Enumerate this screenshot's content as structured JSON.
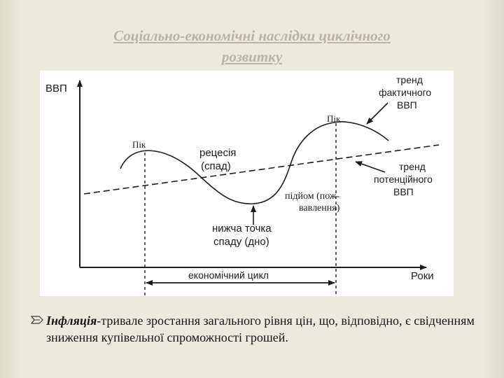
{
  "slide": {
    "title_line1": "Соціально-економічні наслідки циклічного",
    "title_line2": "розвитку"
  },
  "diagram": {
    "y_axis_label": "ВВП",
    "x_axis_label": "Роки",
    "peak_left": "Пік",
    "peak_right": "Пік",
    "recession_line1": "рецесія",
    "recession_line2": "(спад)",
    "trough_line1": "нижча точка",
    "trough_line2": "спаду (дно)",
    "recovery_line1": "підйом (пож-",
    "recovery_line2": "вавлення)",
    "actual_trend_line1": "тренд",
    "actual_trend_line2": "фактичного",
    "actual_trend_line3": "ВВП",
    "potential_trend_line1": "тренд",
    "potential_trend_line2": "потенційного",
    "potential_trend_line3": "ВВП",
    "cycle_label": "економічний цикл"
  },
  "body": {
    "term": "Інфляція",
    "text": "-тривале зростання загального рівня цін, що, відповідно, є свідченням зниження купівельної спроможності грошей."
  },
  "colors": {
    "background": "#ebeadc",
    "title": "#b9b4a2",
    "ink": "#1c1c1c"
  },
  "icons": {
    "bullet": "ribbon-bullet-icon"
  }
}
